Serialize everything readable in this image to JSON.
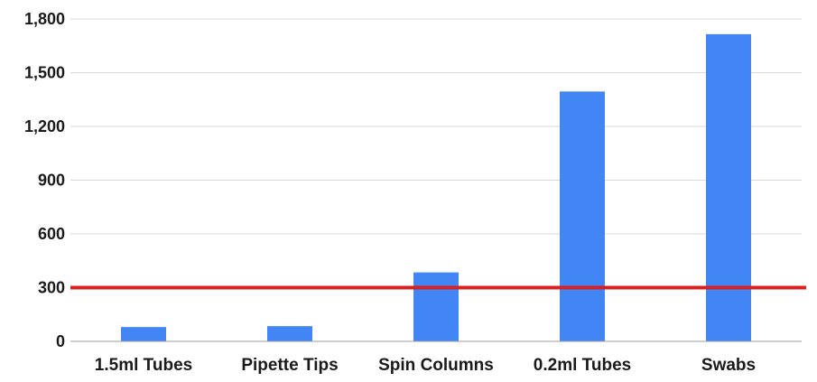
{
  "chart_data": {
    "type": "bar",
    "title": "",
    "xlabel": "",
    "ylabel": "",
    "categories": [
      "1.5ml Tubes",
      "Pipette Tips",
      "Spin Columns",
      "0.2ml Tubes",
      "Swabs"
    ],
    "values": [
      80,
      85,
      385,
      1395,
      1715
    ],
    "ylim": [
      0,
      1800
    ],
    "yticks": [
      0,
      300,
      600,
      900,
      1200,
      1500,
      1800
    ],
    "ytick_labels": [
      "0",
      "300",
      "600",
      "900",
      "1,200",
      "1,500",
      "1,800"
    ],
    "grid": true,
    "legend": "none",
    "reference_line": {
      "value": 300,
      "color": "#d92020"
    },
    "colors": {
      "bar": "#4285f4",
      "grid": "#d9d9d9",
      "axis": "#9e9e9e"
    }
  }
}
